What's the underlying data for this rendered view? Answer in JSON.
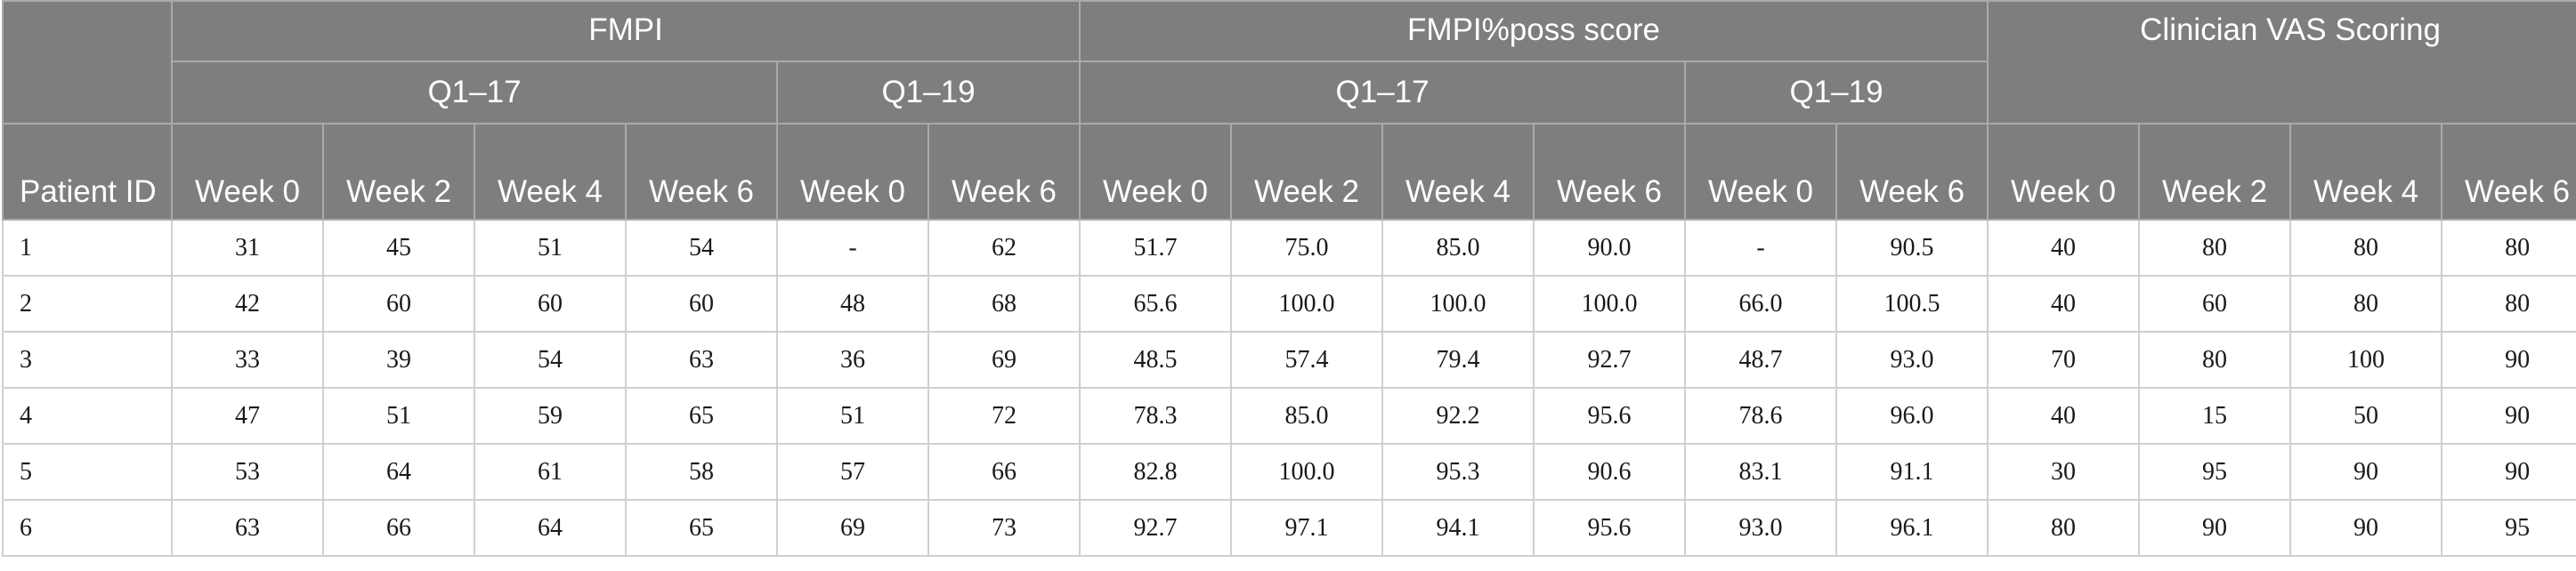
{
  "table": {
    "groups": [
      {
        "label": "FMPI"
      },
      {
        "label": "FMPI%poss score"
      },
      {
        "label": "Clinician VAS Scoring"
      }
    ],
    "subgroups": [
      {
        "label": "Q1–17"
      },
      {
        "label": "Q1–19"
      },
      {
        "label": "Q1–17"
      },
      {
        "label": "Q1–19"
      }
    ],
    "patient_id_label": "Patient ID",
    "week_headers": [
      "Week 0",
      "Week 2",
      "Week 4",
      "Week 6",
      "Week 0",
      "Week 6",
      "Week 0",
      "Week 2",
      "Week 4",
      "Week 6",
      "Week 0",
      "Week 6",
      "Week 0",
      "Week 2",
      "Week 4",
      "Week 6"
    ],
    "rows": [
      {
        "id": "1",
        "cells": [
          "31",
          "45",
          "51",
          "54",
          "-",
          "62",
          "51.7",
          "75.0",
          "85.0",
          "90.0",
          "-",
          "90.5",
          "40",
          "80",
          "80",
          "80"
        ]
      },
      {
        "id": "2",
        "cells": [
          "42",
          "60",
          "60",
          "60",
          "48",
          "68",
          "65.6",
          "100.0",
          "100.0",
          "100.0",
          "66.0",
          "100.5",
          "40",
          "60",
          "80",
          "80"
        ]
      },
      {
        "id": "3",
        "cells": [
          "33",
          "39",
          "54",
          "63",
          "36",
          "69",
          "48.5",
          "57.4",
          "79.4",
          "92.7",
          "48.7",
          "93.0",
          "70",
          "80",
          "100",
          "90"
        ]
      },
      {
        "id": "4",
        "cells": [
          "47",
          "51",
          "59",
          "65",
          "51",
          "72",
          "78.3",
          "85.0",
          "92.2",
          "95.6",
          "78.6",
          "96.0",
          "40",
          "15",
          "50",
          "90"
        ]
      },
      {
        "id": "5",
        "cells": [
          "53",
          "64",
          "61",
          "58",
          "57",
          "66",
          "82.8",
          "100.0",
          "95.3",
          "90.6",
          "83.1",
          "91.1",
          "30",
          "95",
          "90",
          "90"
        ]
      },
      {
        "id": "6",
        "cells": [
          "63",
          "66",
          "64",
          "65",
          "69",
          "73",
          "92.7",
          "97.1",
          "94.1",
          "95.6",
          "93.0",
          "96.1",
          "80",
          "90",
          "90",
          "95"
        ]
      }
    ]
  }
}
